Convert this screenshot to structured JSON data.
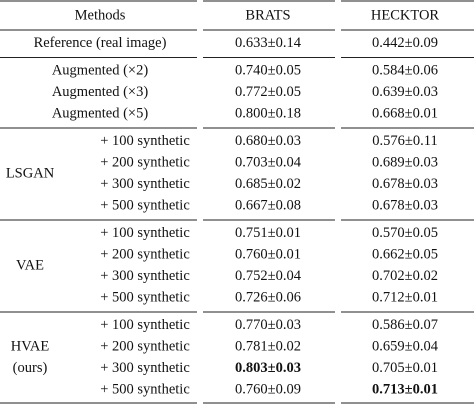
{
  "header": {
    "methods": "Methods",
    "brats": "BRATS",
    "hecktor": "HECKTOR"
  },
  "groups": [
    {
      "rows": [
        {
          "method": "Reference (real image)",
          "brats": "0.633±0.14",
          "hecktor": "0.442±0.09"
        }
      ]
    },
    {
      "rows": [
        {
          "method": "Augmented (×2)",
          "brats": "0.740±0.05",
          "hecktor": "0.584±0.06"
        },
        {
          "method": "Augmented (×3)",
          "brats": "0.772±0.05",
          "hecktor": "0.639±0.03"
        },
        {
          "method": "Augmented (×5)",
          "brats": "0.800±0.18",
          "hecktor": "0.668±0.01"
        }
      ]
    },
    {
      "label": [
        "LSGAN"
      ],
      "rows": [
        {
          "method": "+ 100 synthetic",
          "brats": "0.680±0.03",
          "hecktor": "0.576±0.11"
        },
        {
          "method": "+ 200 synthetic",
          "brats": "0.703±0.04",
          "hecktor": "0.689±0.03"
        },
        {
          "method": "+ 300 synthetic",
          "brats": "0.685±0.02",
          "hecktor": "0.678±0.03"
        },
        {
          "method": "+ 500 synthetic",
          "brats": "0.667±0.08",
          "hecktor": "0.678±0.03"
        }
      ]
    },
    {
      "label": [
        "VAE"
      ],
      "rows": [
        {
          "method": "+ 100 synthetic",
          "brats": "0.751±0.01",
          "hecktor": "0.570±0.05"
        },
        {
          "method": "+ 200 synthetic",
          "brats": "0.760±0.01",
          "hecktor": "0.662±0.05"
        },
        {
          "method": "+ 300 synthetic",
          "brats": "0.752±0.04",
          "hecktor": "0.702±0.02"
        },
        {
          "method": "+ 500 synthetic",
          "brats": "0.726±0.06",
          "hecktor": "0.712±0.01"
        }
      ]
    },
    {
      "label": [
        "HVAE",
        "(ours)"
      ],
      "rows": [
        {
          "method": "+ 100 synthetic",
          "brats": "0.770±0.03",
          "hecktor": "0.586±0.07"
        },
        {
          "method": "+ 200 synthetic",
          "brats": "0.781±0.02",
          "hecktor": "0.659±0.04"
        },
        {
          "method": "+ 300 synthetic",
          "brats": "0.803±0.03",
          "hecktor": "0.705±0.01",
          "bold": "brats"
        },
        {
          "method": "+ 500 synthetic",
          "brats": "0.760±0.09",
          "hecktor": "0.713±0.01",
          "bold": "hecktor"
        }
      ]
    }
  ]
}
